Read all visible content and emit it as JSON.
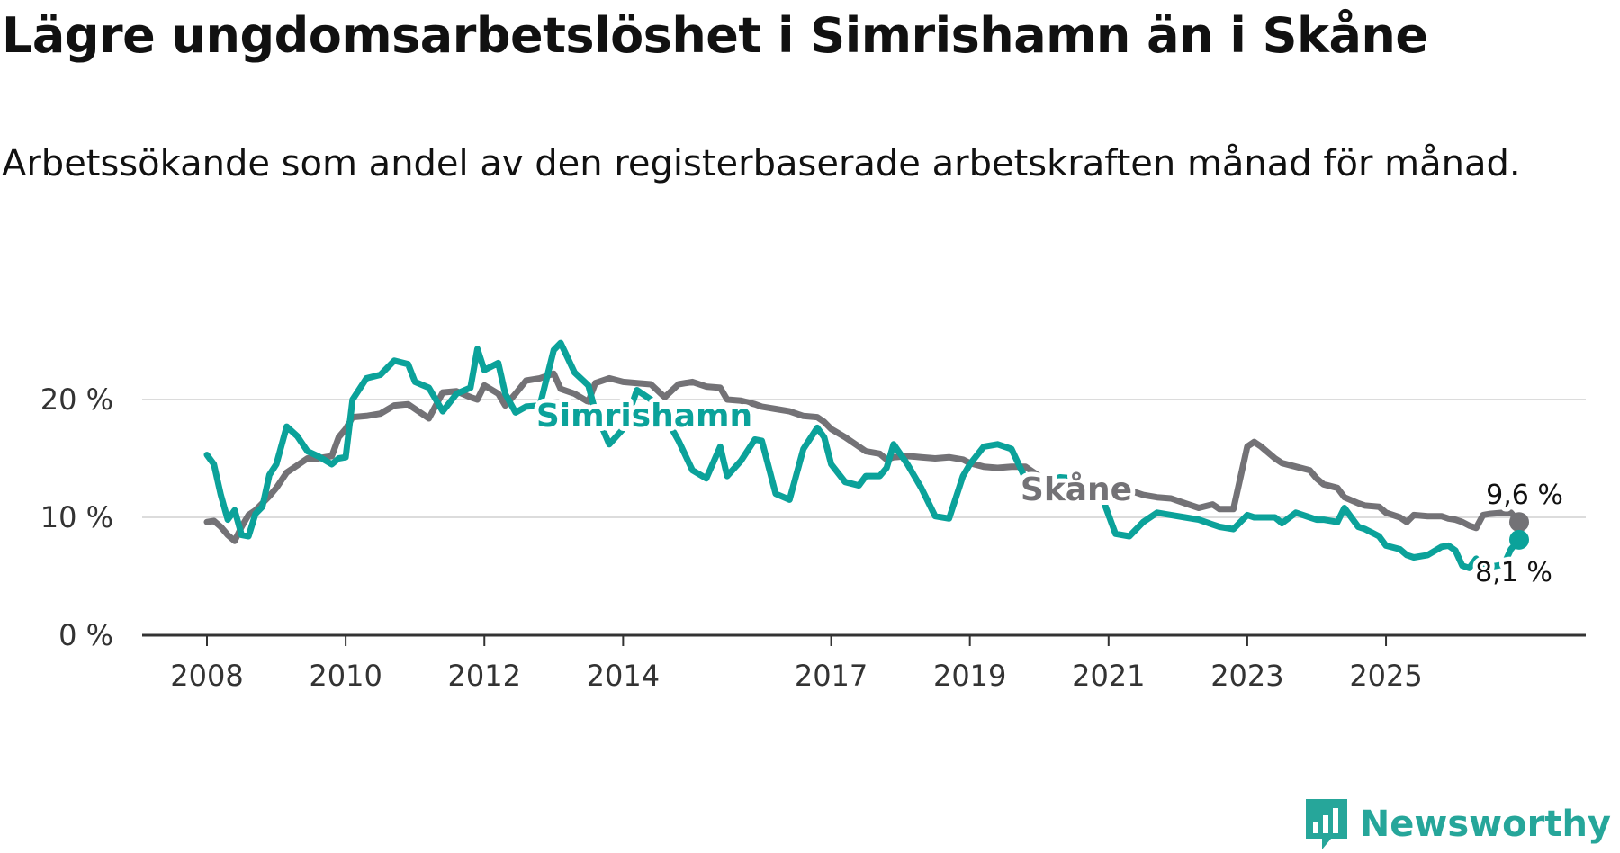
{
  "title": "Lägre ungdomsarbetslöshet i Simrishamn än i Skåne",
  "subtitle": "Arbetssökande som andel av den registerbaserade arbetskraften månad för månad.",
  "brand": {
    "name": "Newsworthy",
    "icon": "newsworthy-logo-icon"
  },
  "colors": {
    "simrishamn": "#0ba29a",
    "skane": "#737276",
    "grid": "#dcdcdc",
    "axis": "#333333"
  },
  "chart_data": {
    "type": "line",
    "title": "Lägre ungdomsarbetslöshet i Simrishamn än i Skåne",
    "xlabel": "",
    "ylabel": "",
    "xlim": [
      2008.0,
      2026.92
    ],
    "ylim": [
      0,
      20
    ],
    "y_ticks": [
      {
        "value": 0,
        "label": "0 %"
      },
      {
        "value": 10,
        "label": "10 %"
      },
      {
        "value": 20,
        "label": "20 %"
      }
    ],
    "x_ticks": [
      {
        "value": 2008,
        "label": "2008"
      },
      {
        "value": 2010,
        "label": "2010"
      },
      {
        "value": 2012,
        "label": "2012"
      },
      {
        "value": 2014,
        "label": "2014"
      },
      {
        "value": 2017,
        "label": "2017"
      },
      {
        "value": 2019,
        "label": "2019"
      },
      {
        "value": 2021,
        "label": "2021"
      },
      {
        "value": 2023,
        "label": "2023"
      },
      {
        "value": 2025,
        "label": "2025"
      }
    ],
    "series": [
      {
        "name": "Skåne",
        "color": "#737276",
        "label": "Skåne",
        "end_label": "9,6 %",
        "points": [
          [
            2008.0,
            9.6
          ],
          [
            2008.1,
            9.7
          ],
          [
            2008.2,
            9.2
          ],
          [
            2008.3,
            8.5
          ],
          [
            2008.4,
            8.0
          ],
          [
            2008.5,
            9.2
          ],
          [
            2008.6,
            10.2
          ],
          [
            2008.7,
            10.6
          ],
          [
            2008.8,
            11.2
          ],
          [
            2008.9,
            11.8
          ],
          [
            2009.0,
            12.5
          ],
          [
            2009.15,
            13.8
          ],
          [
            2009.3,
            14.4
          ],
          [
            2009.45,
            15.0
          ],
          [
            2009.6,
            15.0
          ],
          [
            2009.8,
            15.2
          ],
          [
            2009.9,
            16.8
          ],
          [
            2010.0,
            17.5
          ],
          [
            2010.1,
            18.5
          ],
          [
            2010.3,
            18.6
          ],
          [
            2010.5,
            18.8
          ],
          [
            2010.7,
            19.5
          ],
          [
            2010.9,
            19.6
          ],
          [
            2011.0,
            19.2
          ],
          [
            2011.2,
            18.4
          ],
          [
            2011.4,
            20.6
          ],
          [
            2011.6,
            20.7
          ],
          [
            2011.8,
            20.2
          ],
          [
            2011.9,
            20.0
          ],
          [
            2012.0,
            21.2
          ],
          [
            2012.2,
            20.5
          ],
          [
            2012.3,
            19.5
          ],
          [
            2012.45,
            20.5
          ],
          [
            2012.6,
            21.6
          ],
          [
            2012.8,
            21.8
          ],
          [
            2013.0,
            22.2
          ],
          [
            2013.1,
            20.9
          ],
          [
            2013.3,
            20.5
          ],
          [
            2013.5,
            19.8
          ],
          [
            2013.6,
            21.4
          ],
          [
            2013.8,
            21.8
          ],
          [
            2014.0,
            21.5
          ],
          [
            2014.2,
            21.4
          ],
          [
            2014.4,
            21.3
          ],
          [
            2014.6,
            20.2
          ],
          [
            2014.8,
            21.3
          ],
          [
            2015.0,
            21.5
          ],
          [
            2015.2,
            21.1
          ],
          [
            2015.4,
            21.0
          ],
          [
            2015.5,
            20.0
          ],
          [
            2015.7,
            19.9
          ],
          [
            2015.9,
            19.6
          ],
          [
            2016.0,
            19.4
          ],
          [
            2016.2,
            19.2
          ],
          [
            2016.4,
            19.0
          ],
          [
            2016.6,
            18.6
          ],
          [
            2016.8,
            18.5
          ],
          [
            2016.9,
            18.1
          ],
          [
            2017.0,
            17.5
          ],
          [
            2017.2,
            16.8
          ],
          [
            2017.4,
            16.0
          ],
          [
            2017.5,
            15.6
          ],
          [
            2017.7,
            15.4
          ],
          [
            2017.8,
            14.9
          ],
          [
            2017.9,
            15.1
          ],
          [
            2018.1,
            15.2
          ],
          [
            2018.3,
            15.1
          ],
          [
            2018.5,
            15.0
          ],
          [
            2018.7,
            15.1
          ],
          [
            2018.9,
            14.9
          ],
          [
            2019.0,
            14.6
          ],
          [
            2019.2,
            14.3
          ],
          [
            2019.4,
            14.2
          ],
          [
            2019.6,
            14.3
          ],
          [
            2019.8,
            14.3
          ],
          [
            2020.0,
            13.5
          ],
          [
            2020.2,
            12.8
          ],
          [
            2020.3,
            12.4
          ],
          [
            2020.5,
            12.1
          ],
          [
            2020.6,
            11.7
          ],
          [
            2020.8,
            11.4
          ],
          [
            2020.9,
            12.3
          ],
          [
            2021.1,
            12.6
          ],
          [
            2021.3,
            12.3
          ],
          [
            2021.5,
            11.9
          ],
          [
            2021.7,
            11.7
          ],
          [
            2021.9,
            11.6
          ],
          [
            2022.1,
            11.2
          ],
          [
            2022.3,
            10.8
          ],
          [
            2022.5,
            11.1
          ],
          [
            2022.6,
            10.7
          ],
          [
            2022.8,
            10.7
          ],
          [
            2023.0,
            16.0
          ],
          [
            2023.1,
            16.4
          ],
          [
            2023.2,
            16.0
          ],
          [
            2023.4,
            15.0
          ],
          [
            2023.5,
            14.6
          ],
          [
            2023.7,
            14.3
          ],
          [
            2023.9,
            14.0
          ],
          [
            2024.0,
            13.3
          ],
          [
            2024.1,
            12.8
          ],
          [
            2024.3,
            12.5
          ],
          [
            2024.4,
            11.7
          ],
          [
            2024.6,
            11.2
          ],
          [
            2024.7,
            11.0
          ],
          [
            2024.9,
            10.9
          ],
          [
            2025.0,
            10.4
          ],
          [
            2025.2,
            10.0
          ],
          [
            2025.3,
            9.6
          ],
          [
            2025.4,
            10.2
          ],
          [
            2025.6,
            10.1
          ],
          [
            2025.8,
            10.1
          ],
          [
            2025.9,
            9.9
          ],
          [
            2026.0,
            9.8
          ],
          [
            2026.1,
            9.6
          ],
          [
            2026.2,
            9.3
          ],
          [
            2026.3,
            9.1
          ],
          [
            2026.4,
            10.2
          ],
          [
            2026.5,
            10.3
          ],
          [
            2026.7,
            10.4
          ],
          [
            2026.8,
            10.4
          ],
          [
            2026.92,
            9.6
          ]
        ]
      },
      {
        "name": "Simrishamn",
        "color": "#0ba29a",
        "label": "Simrishamn",
        "end_label": "8,1 %",
        "points": [
          [
            2008.0,
            15.3
          ],
          [
            2008.1,
            14.5
          ],
          [
            2008.2,
            11.9
          ],
          [
            2008.3,
            9.8
          ],
          [
            2008.4,
            10.6
          ],
          [
            2008.5,
            8.5
          ],
          [
            2008.6,
            8.4
          ],
          [
            2008.7,
            10.3
          ],
          [
            2008.8,
            10.9
          ],
          [
            2008.9,
            13.6
          ],
          [
            2009.0,
            14.5
          ],
          [
            2009.15,
            17.7
          ],
          [
            2009.3,
            16.9
          ],
          [
            2009.45,
            15.6
          ],
          [
            2009.6,
            15.2
          ],
          [
            2009.8,
            14.5
          ],
          [
            2009.9,
            15.0
          ],
          [
            2010.0,
            15.1
          ],
          [
            2010.1,
            20.0
          ],
          [
            2010.3,
            21.8
          ],
          [
            2010.5,
            22.1
          ],
          [
            2010.7,
            23.3
          ],
          [
            2010.9,
            23.0
          ],
          [
            2011.0,
            21.5
          ],
          [
            2011.2,
            21.0
          ],
          [
            2011.4,
            19.0
          ],
          [
            2011.6,
            20.5
          ],
          [
            2011.8,
            21.0
          ],
          [
            2011.9,
            24.3
          ],
          [
            2012.0,
            22.5
          ],
          [
            2012.2,
            23.1
          ],
          [
            2012.3,
            20.5
          ],
          [
            2012.45,
            18.9
          ],
          [
            2012.6,
            19.4
          ],
          [
            2012.8,
            19.5
          ],
          [
            2013.0,
            24.2
          ],
          [
            2013.1,
            24.8
          ],
          [
            2013.3,
            22.3
          ],
          [
            2013.5,
            21.2
          ],
          [
            2013.6,
            19.0
          ],
          [
            2013.8,
            16.2
          ],
          [
            2014.0,
            17.5
          ],
          [
            2014.2,
            20.8
          ],
          [
            2014.4,
            20.0
          ],
          [
            2014.6,
            18.6
          ],
          [
            2014.8,
            16.5
          ],
          [
            2015.0,
            14.0
          ],
          [
            2015.2,
            13.3
          ],
          [
            2015.4,
            16.0
          ],
          [
            2015.5,
            13.5
          ],
          [
            2015.7,
            14.8
          ],
          [
            2015.9,
            16.6
          ],
          [
            2016.0,
            16.5
          ],
          [
            2016.2,
            12.0
          ],
          [
            2016.4,
            11.5
          ],
          [
            2016.6,
            15.8
          ],
          [
            2016.8,
            17.6
          ],
          [
            2016.9,
            16.8
          ],
          [
            2017.0,
            14.5
          ],
          [
            2017.2,
            13.0
          ],
          [
            2017.4,
            12.7
          ],
          [
            2017.5,
            13.5
          ],
          [
            2017.7,
            13.5
          ],
          [
            2017.8,
            14.2
          ],
          [
            2017.9,
            16.2
          ],
          [
            2018.1,
            14.5
          ],
          [
            2018.3,
            12.5
          ],
          [
            2018.5,
            10.1
          ],
          [
            2018.7,
            9.9
          ],
          [
            2018.9,
            13.5
          ],
          [
            2019.0,
            14.5
          ],
          [
            2019.2,
            16.0
          ],
          [
            2019.4,
            16.2
          ],
          [
            2019.6,
            15.8
          ],
          [
            2019.8,
            13.3
          ],
          [
            2020.0,
            12.8
          ],
          [
            2020.2,
            13.2
          ],
          [
            2020.3,
            13.4
          ],
          [
            2020.5,
            13.3
          ],
          [
            2020.6,
            13.0
          ],
          [
            2020.8,
            12.2
          ],
          [
            2020.9,
            11.8
          ],
          [
            2021.1,
            8.6
          ],
          [
            2021.3,
            8.4
          ],
          [
            2021.5,
            9.6
          ],
          [
            2021.7,
            10.4
          ],
          [
            2021.9,
            10.2
          ],
          [
            2022.1,
            10.0
          ],
          [
            2022.3,
            9.8
          ],
          [
            2022.5,
            9.4
          ],
          [
            2022.6,
            9.2
          ],
          [
            2022.8,
            9.0
          ],
          [
            2023.0,
            10.2
          ],
          [
            2023.1,
            10.0
          ],
          [
            2023.2,
            10.0
          ],
          [
            2023.4,
            10.0
          ],
          [
            2023.5,
            9.5
          ],
          [
            2023.7,
            10.4
          ],
          [
            2023.9,
            10.0
          ],
          [
            2024.0,
            9.8
          ],
          [
            2024.1,
            9.8
          ],
          [
            2024.3,
            9.6
          ],
          [
            2024.4,
            10.8
          ],
          [
            2024.6,
            9.2
          ],
          [
            2024.7,
            9.0
          ],
          [
            2024.9,
            8.4
          ],
          [
            2025.0,
            7.6
          ],
          [
            2025.2,
            7.3
          ],
          [
            2025.3,
            6.8
          ],
          [
            2025.4,
            6.6
          ],
          [
            2025.6,
            6.8
          ],
          [
            2025.8,
            7.5
          ],
          [
            2025.9,
            7.6
          ],
          [
            2026.0,
            7.2
          ],
          [
            2026.1,
            5.9
          ],
          [
            2026.2,
            5.7
          ],
          [
            2026.3,
            6.5
          ],
          [
            2026.4,
            5.6
          ],
          [
            2026.5,
            5.8
          ],
          [
            2026.7,
            6.0
          ],
          [
            2026.8,
            7.3
          ],
          [
            2026.92,
            8.1
          ]
        ]
      }
    ]
  }
}
